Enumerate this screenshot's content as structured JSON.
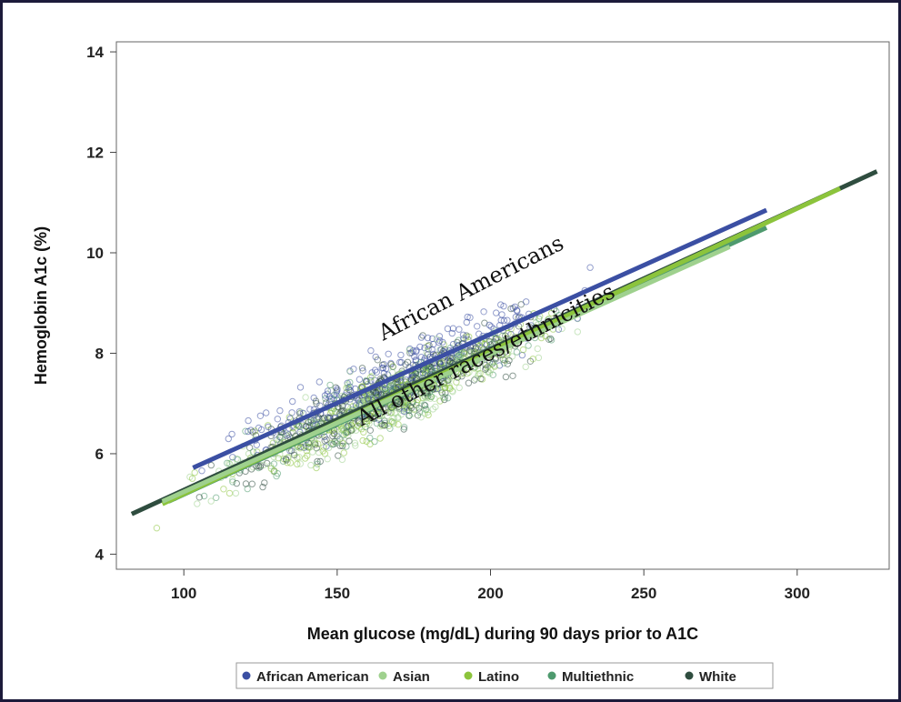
{
  "chart_data": {
    "type": "scatter",
    "title": "",
    "xlabel": "Mean glucose (mg/dL) during 90 days prior to A1C",
    "ylabel": "Hemoglobin A1c (%)",
    "xlim": [
      78,
      330
    ],
    "ylim": [
      3.7,
      14.2
    ],
    "x_ticks": [
      100,
      150,
      200,
      250,
      300
    ],
    "y_ticks": [
      4,
      6,
      8,
      10,
      12,
      14
    ],
    "grid": false,
    "legend_position": "bottom",
    "series": [
      {
        "name": "African American",
        "color": "#3b4fa3",
        "fit_line": {
          "x": [
            103,
            290
          ],
          "y": [
            5.72,
            10.85
          ]
        }
      },
      {
        "name": "Asian",
        "color": "#9fd18e",
        "fit_line": {
          "x": [
            93,
            278
          ],
          "y": [
            5.05,
            10.12
          ]
        }
      },
      {
        "name": "Latino",
        "color": "#8cc43c",
        "fit_line": {
          "x": [
            93,
            314
          ],
          "y": [
            5.0,
            11.28
          ]
        }
      },
      {
        "name": "Multiethnic",
        "color": "#4e9a6e",
        "fit_line": {
          "x": [
            95,
            290
          ],
          "y": [
            5.05,
            10.5
          ]
        }
      },
      {
        "name": "White",
        "color": "#2f4d3f",
        "fit_line": {
          "x": [
            83,
            326
          ],
          "y": [
            4.8,
            11.62
          ]
        }
      }
    ],
    "annotations": [
      {
        "text": "African Americans",
        "x": 165,
        "y": 8.25,
        "angle_deg": -27
      },
      {
        "text": "All other races/ethnicities",
        "x": 158,
        "y": 6.55,
        "angle_deg": -27
      }
    ]
  }
}
